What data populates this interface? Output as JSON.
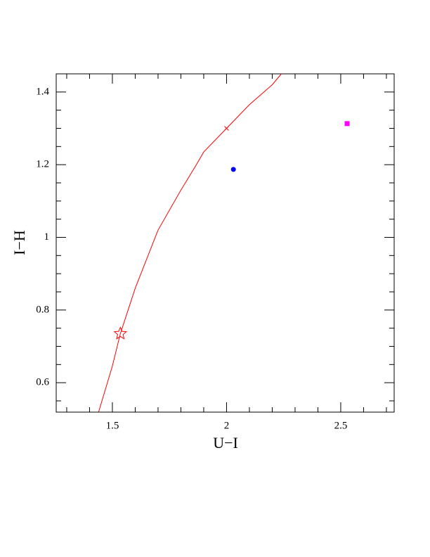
{
  "chart_data": {
    "type": "line",
    "xlabel": "U−I",
    "ylabel": "I−H",
    "xlim": [
      1.254,
      2.734
    ],
    "ylim": [
      0.519,
      1.45
    ],
    "xticks": [
      1.5,
      2,
      2.5
    ],
    "yticks": [
      0.6,
      0.8,
      1,
      1.2,
      1.4
    ],
    "xminorticks": [
      1.3,
      1.4,
      1.6,
      1.7,
      1.8,
      1.9,
      2.1,
      2.2,
      2.3,
      2.4,
      2.6,
      2.7
    ],
    "yminorticks": [
      0.55,
      0.65,
      0.7,
      0.75,
      0.85,
      0.9,
      0.95,
      1.05,
      1.1,
      1.15,
      1.25,
      1.3,
      1.35
    ],
    "series": [
      {
        "color": "#ff0000",
        "marker": "line",
        "x": [
          1.44,
          1.5,
          1.535,
          1.6,
          1.7,
          1.8,
          1.868,
          1.9,
          2.0,
          2.1,
          2.2,
          2.24
        ],
        "values": [
          0.52,
          0.646,
          0.735,
          0.86,
          1.02,
          1.13,
          1.2,
          1.235,
          1.3,
          1.365,
          1.42,
          1.45
        ]
      },
      {
        "color": "#ff0000",
        "marker": "star",
        "x": [
          1.535
        ],
        "values": [
          0.735
        ]
      },
      {
        "color": "#ff0000",
        "marker": "cross",
        "x": [
          2.0
        ],
        "values": [
          1.3
        ]
      },
      {
        "color": "#0000ff",
        "marker": "dot",
        "x": [
          2.03
        ],
        "values": [
          1.187
        ]
      },
      {
        "color": "#ff00ff",
        "marker": "square",
        "x": [
          2.528
        ],
        "values": [
          1.313
        ]
      }
    ]
  }
}
